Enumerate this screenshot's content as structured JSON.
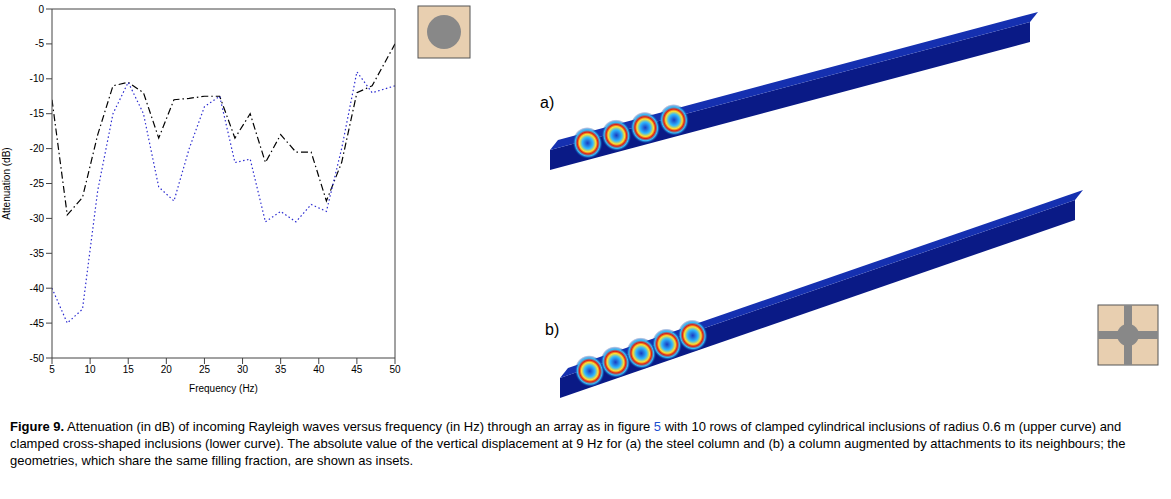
{
  "chart_data": {
    "type": "line",
    "x_label": "Frequency (Hz)",
    "y_label": "Attenuation (dB)",
    "x": [
      5,
      7,
      9,
      11,
      13,
      15,
      17,
      19,
      21,
      23,
      25,
      27,
      29,
      31,
      33,
      35,
      37,
      39,
      41,
      43,
      45,
      47,
      50
    ],
    "series": [
      {
        "color": "#000000",
        "line_style": "dashdot",
        "marker": "none",
        "values": [
          -13,
          -29.5,
          -27,
          -18,
          -11,
          -10.5,
          -12,
          -18.5,
          -13,
          -12.8,
          -12.5,
          -12.5,
          -18.5,
          -15,
          -22,
          -18,
          -20.5,
          -20.5,
          -27.5,
          -22,
          -12,
          -11,
          -5
        ]
      },
      {
        "color": "#2a2ad0",
        "line_style": "dotted",
        "marker": "none",
        "values": [
          -40,
          -45,
          -43,
          -26,
          -15,
          -10.5,
          -15,
          -25.5,
          -27.5,
          -20,
          -14,
          -12.5,
          -22,
          -21.5,
          -30.5,
          -29,
          -30.5,
          -28,
          -29,
          -20,
          -9,
          -12,
          -11
        ]
      }
    ],
    "xlim": [
      5,
      50
    ],
    "xticks": [
      5,
      10,
      15,
      20,
      25,
      30,
      35,
      40,
      45,
      50
    ],
    "ylim": [
      -50,
      0
    ],
    "yticks": [
      -50,
      -45,
      -40,
      -35,
      -30,
      -25,
      -20,
      -15,
      -10,
      -5,
      0
    ],
    "grid": false
  },
  "panels": [
    {
      "label": "a)"
    },
    {
      "label": "b)"
    }
  ],
  "caption": {
    "label": "Figure 9.",
    "text": [
      "Attenuation (in dB) of incoming Rayleigh waves versus frequency (in Hz) through an array as in figure ",
      "5",
      " with 10 rows of clamped cylindrical inclusions of radius 0.6 m (upper curve) and clamped cross-shaped inclusions (lower curve). The absolute value of the vertical displacement at 9 Hz for (a) the steel column and (b) a column augmented by attachments to its neighbours; the geometries, which share the same filling fraction, are shown as insets."
    ]
  }
}
